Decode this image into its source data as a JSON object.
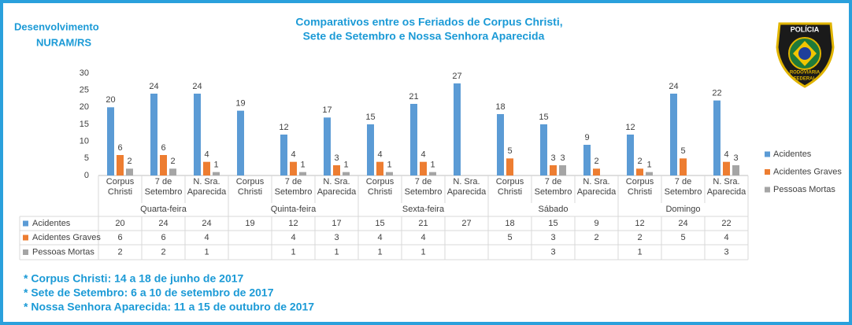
{
  "header": {
    "line1": "Desenvolvimento",
    "line2": "NURAM/RS"
  },
  "badge": {
    "top": "POLÍCIA",
    "middle": "RODOVIÁRIA",
    "bottom": "FEDERAL"
  },
  "chart_data": {
    "type": "bar",
    "title": "Comparativos entre os Feriados de Corpus Christi,",
    "subtitle": "Sete de Setembro e Nossa Senhora Aparecida",
    "groups": [
      "Quarta-feira",
      "Quinta-feira",
      "Sexta-feira",
      "Sábado",
      "Domingo"
    ],
    "categories": [
      "Corpus Christi",
      "7 de Setembro",
      "N. Sra. Aparecida",
      "Corpus Christi",
      "7 de Setembro",
      "N. Sra. Aparecida",
      "Corpus Christi",
      "7 de Setembro",
      "N. Sra. Aparecida",
      "Corpus Christi",
      "7 de Setembro",
      "N. Sra. Aparecida",
      "Corpus Christi",
      "7 de Setembro",
      "N. Sra. Aparecida"
    ],
    "series": [
      {
        "name": "Acidentes",
        "color": "#5b9bd5",
        "values": [
          20,
          24,
          24,
          19,
          12,
          17,
          15,
          21,
          27,
          18,
          15,
          9,
          12,
          24,
          22
        ]
      },
      {
        "name": "Acidentes Graves",
        "color": "#ed7d31",
        "values": [
          6,
          6,
          4,
          null,
          4,
          3,
          4,
          4,
          null,
          5,
          3,
          2,
          2,
          5,
          4
        ]
      },
      {
        "name": "Pessoas Mortas",
        "color": "#a5a5a5",
        "values": [
          2,
          2,
          1,
          null,
          1,
          1,
          1,
          1,
          null,
          null,
          3,
          null,
          1,
          null,
          3
        ]
      }
    ],
    "ylim": [
      0,
      30
    ],
    "yticks": [
      0,
      5,
      10,
      15,
      20,
      25,
      30
    ],
    "grid": false,
    "legend": "right",
    "notes": [
      "* Corpus Christi: 14 a 18 de junho de 2017",
      "* Sete de Setembro: 6 a 10 de setembro de 2017",
      "* Nossa Senhora Aparecida: 11 a 15 de outubro de 2017"
    ]
  }
}
